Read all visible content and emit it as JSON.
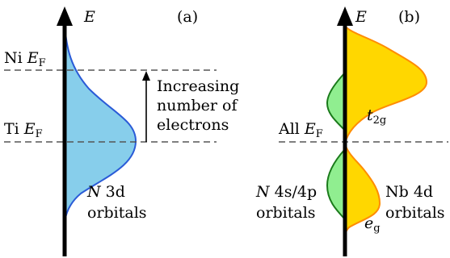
{
  "panel_a": {
    "tag": "(a)",
    "axis_label": "E",
    "ni_fermi": {
      "prefix": "Ni ",
      "symbol": "E",
      "sub": "F"
    },
    "ti_fermi": {
      "prefix": "Ti ",
      "symbol": "E",
      "sub": "F"
    },
    "arrow_text": [
      "Increasing",
      "number of",
      "electrons"
    ],
    "band": {
      "line1_italic": "N",
      "line1_rest": " 3d",
      "line2": "orbitals"
    },
    "band_fill": "#87ceeb",
    "band_stroke": "#2a5bd7"
  },
  "panel_b": {
    "tag": "(b)",
    "axis_label": "E",
    "fermi": {
      "prefix": "All ",
      "symbol": "E",
      "sub": "F"
    },
    "t2g": {
      "symbol": "t",
      "sub": "2g"
    },
    "eg": {
      "symbol": "e",
      "sub": "g"
    },
    "left_band": {
      "line1_italic": "N",
      "line1_rest": " 4s/4p",
      "line2": "orbitals"
    },
    "right_band": {
      "line1": "Nb 4d",
      "line2": "orbitals"
    },
    "nb_fill": "#ffd700",
    "nb_stroke": "#ff8c00",
    "sp_fill": "#90ee90",
    "sp_stroke": "#1a7a1a"
  }
}
